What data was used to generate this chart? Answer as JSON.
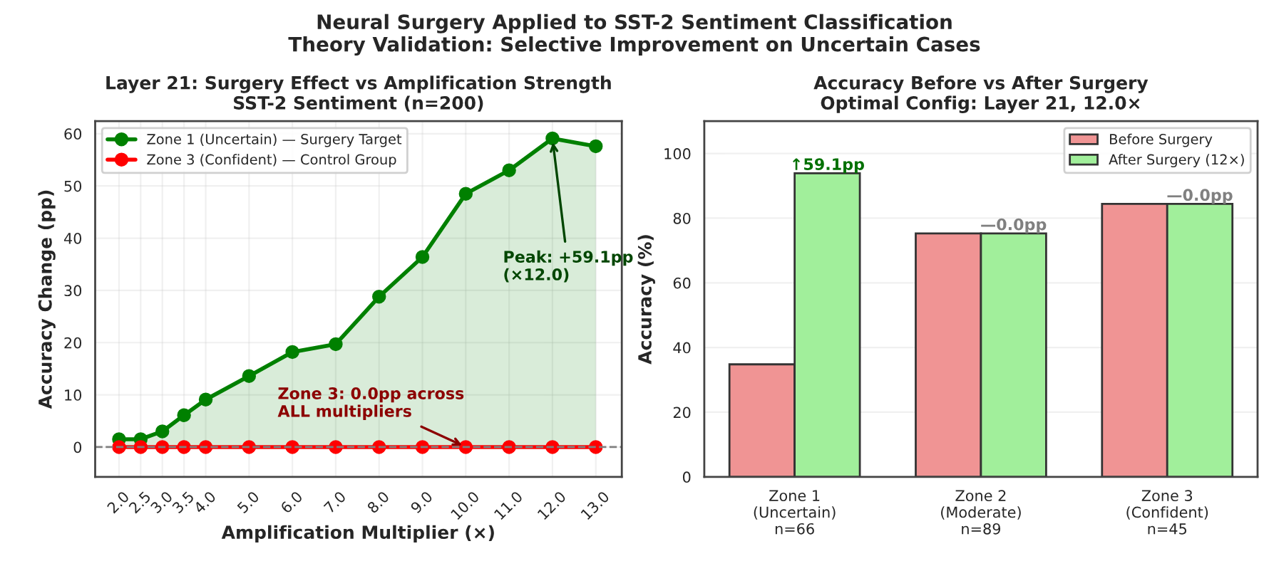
{
  "chart_data": [
    {
      "type": "line",
      "title": "Layer 21: Surgery Effect vs Amplification Strength",
      "subtitle": "SST-2 Sentiment (n=200)",
      "xlabel": "Amplification Multiplier (×)",
      "ylabel": "Accuracy Change (pp)",
      "x": [
        2.0,
        2.5,
        3.0,
        3.5,
        4.0,
        5.0,
        6.0,
        7.0,
        8.0,
        9.0,
        10.0,
        11.0,
        12.0,
        13.0
      ],
      "series": [
        {
          "name": "Zone 1 (Uncertain) — Surgery Target",
          "type": "area",
          "color": "#008000",
          "values": [
            1.5,
            1.5,
            3.0,
            6.1,
            9.1,
            13.6,
            18.2,
            19.7,
            28.8,
            36.4,
            48.5,
            53.0,
            59.1,
            57.6
          ]
        },
        {
          "name": "Zone 3 (Confident) — Control Group",
          "color": "#ff0000",
          "values": [
            0,
            0,
            0,
            0,
            0,
            0,
            0,
            0,
            0,
            0,
            0,
            0,
            0,
            0
          ]
        }
      ],
      "marker": "circle",
      "xlim": [
        1.45,
        13.6
      ],
      "ylim": [
        -5.7,
        62.4
      ],
      "xticks": [
        {
          "value": 2,
          "label": "2.0"
        },
        {
          "value": 2.5,
          "label": "2.5"
        },
        {
          "value": 3,
          "label": "3.0"
        },
        {
          "value": 3.5,
          "label": "3.5"
        },
        {
          "value": 4,
          "label": "4.0"
        },
        {
          "value": 5,
          "label": "5.0"
        },
        {
          "value": 6,
          "label": "6.0"
        },
        {
          "value": 7,
          "label": "7.0"
        },
        {
          "value": 8,
          "label": "8.0"
        },
        {
          "value": 9,
          "label": "9.0"
        },
        {
          "value": 10,
          "label": "10.0"
        },
        {
          "value": 11,
          "label": "11.0"
        },
        {
          "value": 12,
          "label": "12.0"
        },
        {
          "value": 13,
          "label": "13.0"
        }
      ],
      "yticks": [
        0,
        10,
        20,
        30,
        40,
        50,
        60
      ],
      "grid": true,
      "legend": "top left",
      "ref_lines": [
        {
          "axis": "y",
          "value": 0,
          "color": "#808080",
          "line_style": "dashed"
        }
      ],
      "annotations": [
        "Neural Surgery Applied to SST-2 Sentiment Classification",
        "Theory Validation: Selective Improvement on Uncertain Cases",
        {
          "text": "Peak: +59.1pp\n(×12.0)",
          "x": 12,
          "y": 59.1
        },
        {
          "text": "Zone 3: 0.0pp across\nALL multipliers",
          "x": 10,
          "y": 0
        }
      ]
    },
    {
      "type": "bar",
      "title": "Accuracy Before vs After Surgery",
      "subtitle": "Optimal Config: Layer 21, 12.0×",
      "ylabel": "Accuracy (%)",
      "categories": [
        "Zone 1\n(Uncertain)\nn=66",
        "Zone 2\n(Moderate)\nn=89",
        "Zone 3\n(Confident)\nn=45"
      ],
      "series": [
        {
          "name": "Before Surgery",
          "color": "#f09494",
          "values": [
            34.8,
            75.3,
            84.4
          ]
        },
        {
          "name": "After Surgery (12×)",
          "color": "#a1ef9b",
          "values": [
            93.9,
            75.3,
            84.4
          ]
        }
      ],
      "annotations": [
        {
          "text": "↑59.1pp",
          "x": "Zone 1\n(Uncertain)\nn=66",
          "y": 93.9
        },
        {
          "text": "—0.0pp",
          "x": "Zone 2\n(Moderate)\nn=89",
          "y": 75.3
        },
        {
          "text": "—0.0pp",
          "x": "Zone 3\n(Confident)\nn=45",
          "y": 84.4
        }
      ],
      "ylim": [
        0,
        110
      ],
      "yticks": [
        0,
        20,
        40,
        60,
        80,
        100
      ],
      "grid": "y",
      "legend": "top right"
    }
  ]
}
